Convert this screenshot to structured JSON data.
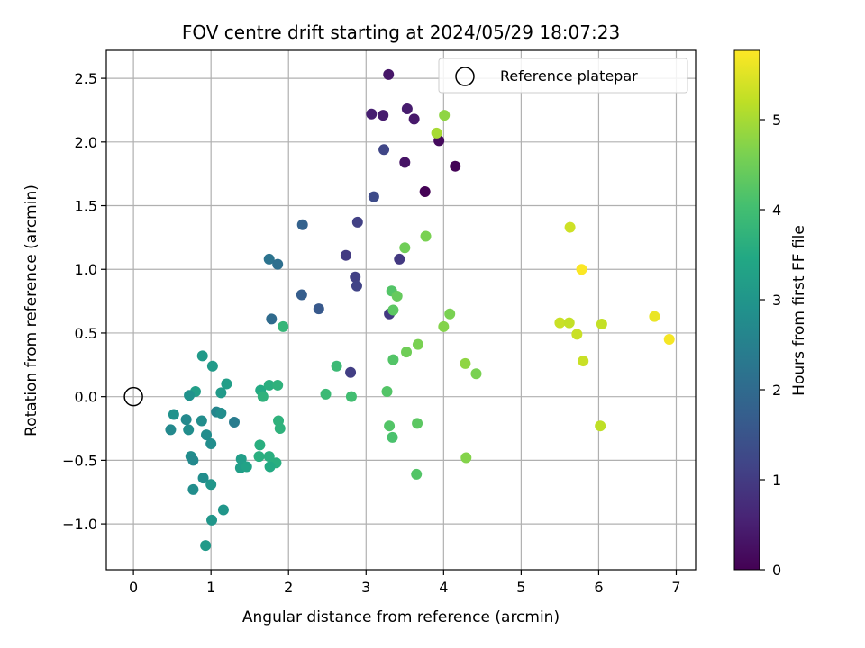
{
  "chart_data": {
    "type": "scatter",
    "title": "FOV centre drift starting at 2024/05/29 18:07:23",
    "xlabel": "Angular distance from reference (arcmin)",
    "ylabel": "Rotation from reference (arcmin)",
    "xlim": [
      -0.35,
      7.25
    ],
    "ylim": [
      -1.36,
      2.72
    ],
    "xticks": [
      0,
      1,
      2,
      3,
      4,
      5,
      6,
      7
    ],
    "yticks": [
      -1.0,
      -0.5,
      0.0,
      0.5,
      1.0,
      1.5,
      2.0,
      2.5
    ],
    "ytick_labels": [
      "−1.0",
      "−0.5",
      "0.0",
      "0.5",
      "1.0",
      "1.5",
      "2.0",
      "2.5"
    ],
    "grid": true,
    "colorbar": {
      "label": "Hours from first FF file",
      "colormap": "viridis",
      "range": [
        0,
        5.77
      ],
      "ticks": [
        0,
        1,
        2,
        3,
        4,
        5
      ]
    },
    "legend": {
      "entries": [
        "Reference platepar"
      ],
      "placement": "top-right"
    },
    "reference_point": {
      "x": 0,
      "y": 0
    },
    "points": [
      {
        "x": 3.29,
        "y": 2.53,
        "c": 0.35
      },
      {
        "x": 3.07,
        "y": 2.22,
        "c": 0.5
      },
      {
        "x": 3.22,
        "y": 2.21,
        "c": 0.45
      },
      {
        "x": 3.53,
        "y": 2.26,
        "c": 0.45
      },
      {
        "x": 3.62,
        "y": 2.18,
        "c": 0.4
      },
      {
        "x": 3.94,
        "y": 2.01,
        "c": 0.15
      },
      {
        "x": 3.5,
        "y": 1.84,
        "c": 0.3
      },
      {
        "x": 4.15,
        "y": 1.81,
        "c": 0.05
      },
      {
        "x": 3.76,
        "y": 1.61,
        "c": 0.02
      },
      {
        "x": 3.23,
        "y": 1.94,
        "c": 1.2
      },
      {
        "x": 3.1,
        "y": 1.57,
        "c": 1.3
      },
      {
        "x": 2.89,
        "y": 1.37,
        "c": 1.1
      },
      {
        "x": 2.74,
        "y": 1.11,
        "c": 1.0
      },
      {
        "x": 2.86,
        "y": 0.94,
        "c": 1.1
      },
      {
        "x": 2.88,
        "y": 0.87,
        "c": 1.15
      },
      {
        "x": 3.43,
        "y": 1.08,
        "c": 0.95
      },
      {
        "x": 3.3,
        "y": 0.65,
        "c": 0.95
      },
      {
        "x": 2.8,
        "y": 0.19,
        "c": 1.05
      },
      {
        "x": 2.18,
        "y": 1.35,
        "c": 1.8
      },
      {
        "x": 2.17,
        "y": 0.8,
        "c": 1.7
      },
      {
        "x": 2.39,
        "y": 0.69,
        "c": 1.6
      },
      {
        "x": 1.75,
        "y": 1.08,
        "c": 2.2
      },
      {
        "x": 1.86,
        "y": 1.04,
        "c": 2.1
      },
      {
        "x": 1.78,
        "y": 0.61,
        "c": 2.0
      },
      {
        "x": 1.93,
        "y": 0.55,
        "c": 3.8
      },
      {
        "x": 1.3,
        "y": -0.2,
        "c": 2.4
      },
      {
        "x": 0.89,
        "y": 0.32,
        "c": 3.1
      },
      {
        "x": 1.02,
        "y": 0.24,
        "c": 3.1
      },
      {
        "x": 1.2,
        "y": 0.1,
        "c": 3.2
      },
      {
        "x": 0.8,
        "y": 0.04,
        "c": 3.2
      },
      {
        "x": 0.72,
        "y": 0.01,
        "c": 2.9
      },
      {
        "x": 1.13,
        "y": 0.03,
        "c": 3.1
      },
      {
        "x": 1.07,
        "y": -0.12,
        "c": 2.6
      },
      {
        "x": 1.13,
        "y": -0.13,
        "c": 2.8
      },
      {
        "x": 0.52,
        "y": -0.14,
        "c": 2.9
      },
      {
        "x": 0.68,
        "y": -0.18,
        "c": 2.7
      },
      {
        "x": 0.88,
        "y": -0.19,
        "c": 2.8
      },
      {
        "x": 0.48,
        "y": -0.26,
        "c": 2.7
      },
      {
        "x": 0.71,
        "y": -0.26,
        "c": 2.8
      },
      {
        "x": 0.94,
        "y": -0.3,
        "c": 2.8
      },
      {
        "x": 1.0,
        "y": -0.37,
        "c": 2.8
      },
      {
        "x": 0.74,
        "y": -0.47,
        "c": 2.8
      },
      {
        "x": 0.77,
        "y": -0.5,
        "c": 2.7
      },
      {
        "x": 0.9,
        "y": -0.64,
        "c": 2.8
      },
      {
        "x": 1.0,
        "y": -0.69,
        "c": 3.0
      },
      {
        "x": 0.77,
        "y": -0.73,
        "c": 2.8
      },
      {
        "x": 1.16,
        "y": -0.89,
        "c": 3.0
      },
      {
        "x": 1.01,
        "y": -0.97,
        "c": 3.0
      },
      {
        "x": 0.93,
        "y": -1.17,
        "c": 3.1
      },
      {
        "x": 1.39,
        "y": -0.49,
        "c": 3.2
      },
      {
        "x": 1.38,
        "y": -0.56,
        "c": 3.2
      },
      {
        "x": 1.46,
        "y": -0.55,
        "c": 3.3
      },
      {
        "x": 1.63,
        "y": -0.38,
        "c": 3.6
      },
      {
        "x": 1.62,
        "y": -0.47,
        "c": 3.6
      },
      {
        "x": 1.75,
        "y": -0.47,
        "c": 3.6
      },
      {
        "x": 1.84,
        "y": -0.52,
        "c": 3.6
      },
      {
        "x": 1.76,
        "y": -0.55,
        "c": 3.5
      },
      {
        "x": 1.64,
        "y": 0.05,
        "c": 3.5
      },
      {
        "x": 1.67,
        "y": 0.0,
        "c": 3.7
      },
      {
        "x": 1.75,
        "y": 0.09,
        "c": 3.6
      },
      {
        "x": 1.86,
        "y": 0.09,
        "c": 3.7
      },
      {
        "x": 1.87,
        "y": -0.19,
        "c": 3.7
      },
      {
        "x": 1.89,
        "y": -0.25,
        "c": 3.7
      },
      {
        "x": 2.48,
        "y": 0.02,
        "c": 3.9
      },
      {
        "x": 2.62,
        "y": 0.24,
        "c": 3.9
      },
      {
        "x": 2.81,
        "y": 0.0,
        "c": 4.0
      },
      {
        "x": 3.27,
        "y": 0.04,
        "c": 4.2
      },
      {
        "x": 3.3,
        "y": -0.23,
        "c": 4.2
      },
      {
        "x": 3.34,
        "y": -0.32,
        "c": 4.1
      },
      {
        "x": 3.35,
        "y": 0.29,
        "c": 4.2
      },
      {
        "x": 3.35,
        "y": 0.68,
        "c": 4.3
      },
      {
        "x": 3.33,
        "y": 0.83,
        "c": 4.2
      },
      {
        "x": 3.4,
        "y": 0.79,
        "c": 4.4
      },
      {
        "x": 3.52,
        "y": 0.35,
        "c": 4.5
      },
      {
        "x": 3.67,
        "y": 0.41,
        "c": 4.6
      },
      {
        "x": 3.5,
        "y": 1.17,
        "c": 4.5
      },
      {
        "x": 3.77,
        "y": 1.26,
        "c": 4.6
      },
      {
        "x": 3.66,
        "y": -0.21,
        "c": 4.3
      },
      {
        "x": 3.65,
        "y": -0.61,
        "c": 4.2
      },
      {
        "x": 4.0,
        "y": 0.55,
        "c": 4.7
      },
      {
        "x": 4.08,
        "y": 0.65,
        "c": 4.6
      },
      {
        "x": 4.28,
        "y": 0.26,
        "c": 4.8
      },
      {
        "x": 4.42,
        "y": 0.18,
        "c": 4.6
      },
      {
        "x": 4.29,
        "y": -0.48,
        "c": 4.7
      },
      {
        "x": 4.01,
        "y": 2.21,
        "c": 4.8
      },
      {
        "x": 3.91,
        "y": 2.07,
        "c": 5.0
      },
      {
        "x": 5.63,
        "y": 1.33,
        "c": 5.35
      },
      {
        "x": 5.78,
        "y": 1.0,
        "c": 5.75
      },
      {
        "x": 5.5,
        "y": 0.58,
        "c": 5.3
      },
      {
        "x": 5.62,
        "y": 0.58,
        "c": 5.25
      },
      {
        "x": 5.72,
        "y": 0.49,
        "c": 5.3
      },
      {
        "x": 5.8,
        "y": 0.28,
        "c": 5.3
      },
      {
        "x": 6.04,
        "y": 0.57,
        "c": 5.25
      },
      {
        "x": 6.02,
        "y": -0.23,
        "c": 5.2
      },
      {
        "x": 6.72,
        "y": 0.63,
        "c": 5.6
      },
      {
        "x": 6.91,
        "y": 0.45,
        "c": 5.7
      }
    ]
  }
}
